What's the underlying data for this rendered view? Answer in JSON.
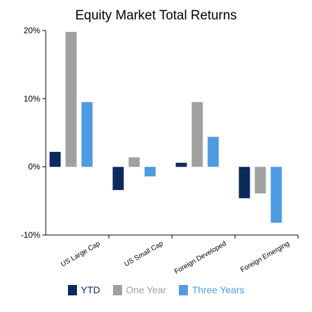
{
  "chart_data": {
    "type": "bar",
    "title": "Equity Market Total Returns",
    "categories": [
      "US Large Cap",
      "US Small Cap",
      "Foreign Developed",
      "Foreign Emerging"
    ],
    "series": [
      {
        "name": "YTD",
        "color": "#0c2a5c",
        "values": [
          2.2,
          -3.4,
          0.6,
          -4.6
        ]
      },
      {
        "name": "One Year",
        "color": "#a0a0a0",
        "values": [
          19.8,
          1.4,
          9.5,
          -3.9
        ]
      },
      {
        "name": "Three Years",
        "color": "#4f9be2",
        "values": [
          9.5,
          -1.4,
          4.4,
          -8.2
        ]
      }
    ],
    "ylim": [
      -10,
      20
    ],
    "yticks": [
      -10,
      0,
      10,
      20
    ],
    "ytick_labels": [
      "-10%",
      "0%",
      "10%",
      "20%"
    ],
    "xlabel": "",
    "ylabel": "",
    "grid": false,
    "legend_position": "bottom"
  }
}
